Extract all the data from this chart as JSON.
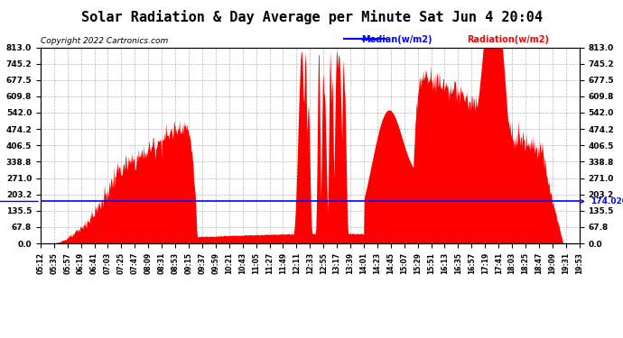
{
  "title": "Solar Radiation & Day Average per Minute Sat Jun 4 20:04",
  "copyright": "Copyright 2022 Cartronics.com",
  "median_value": 174.02,
  "ymax": 813.0,
  "ymin": 0.0,
  "yticks": [
    0.0,
    67.8,
    135.5,
    203.2,
    271.0,
    338.8,
    406.5,
    474.2,
    542.0,
    609.8,
    677.5,
    745.2,
    813.0
  ],
  "ytick_labels": [
    "0.0",
    "67.8",
    "135.5",
    "203.2",
    "271.0",
    "338.8",
    "406.5",
    "474.2",
    "542.0",
    "609.8",
    "677.5",
    "745.2",
    "813.0"
  ],
  "legend_median_label": "Median(w/m2)",
  "legend_radiation_label": "Radiation(w/m2)",
  "median_color": "#0000FF",
  "radiation_color": "#FF0000",
  "background_color": "#FFFFFF",
  "grid_color": "#888888",
  "title_fontsize": 11,
  "copyright_color": "#000000",
  "xtick_labels": [
    "05:12",
    "05:35",
    "05:57",
    "06:19",
    "06:41",
    "07:03",
    "07:25",
    "07:47",
    "08:09",
    "08:31",
    "08:53",
    "09:15",
    "09:37",
    "09:59",
    "10:21",
    "10:43",
    "11:05",
    "11:27",
    "11:49",
    "12:11",
    "12:33",
    "12:55",
    "13:17",
    "13:39",
    "14:01",
    "14:23",
    "14:45",
    "15:07",
    "15:29",
    "15:51",
    "16:13",
    "16:35",
    "16:57",
    "17:19",
    "17:41",
    "18:03",
    "18:25",
    "18:47",
    "19:09",
    "19:31",
    "19:53"
  ],
  "num_points": 870,
  "seed": 123
}
